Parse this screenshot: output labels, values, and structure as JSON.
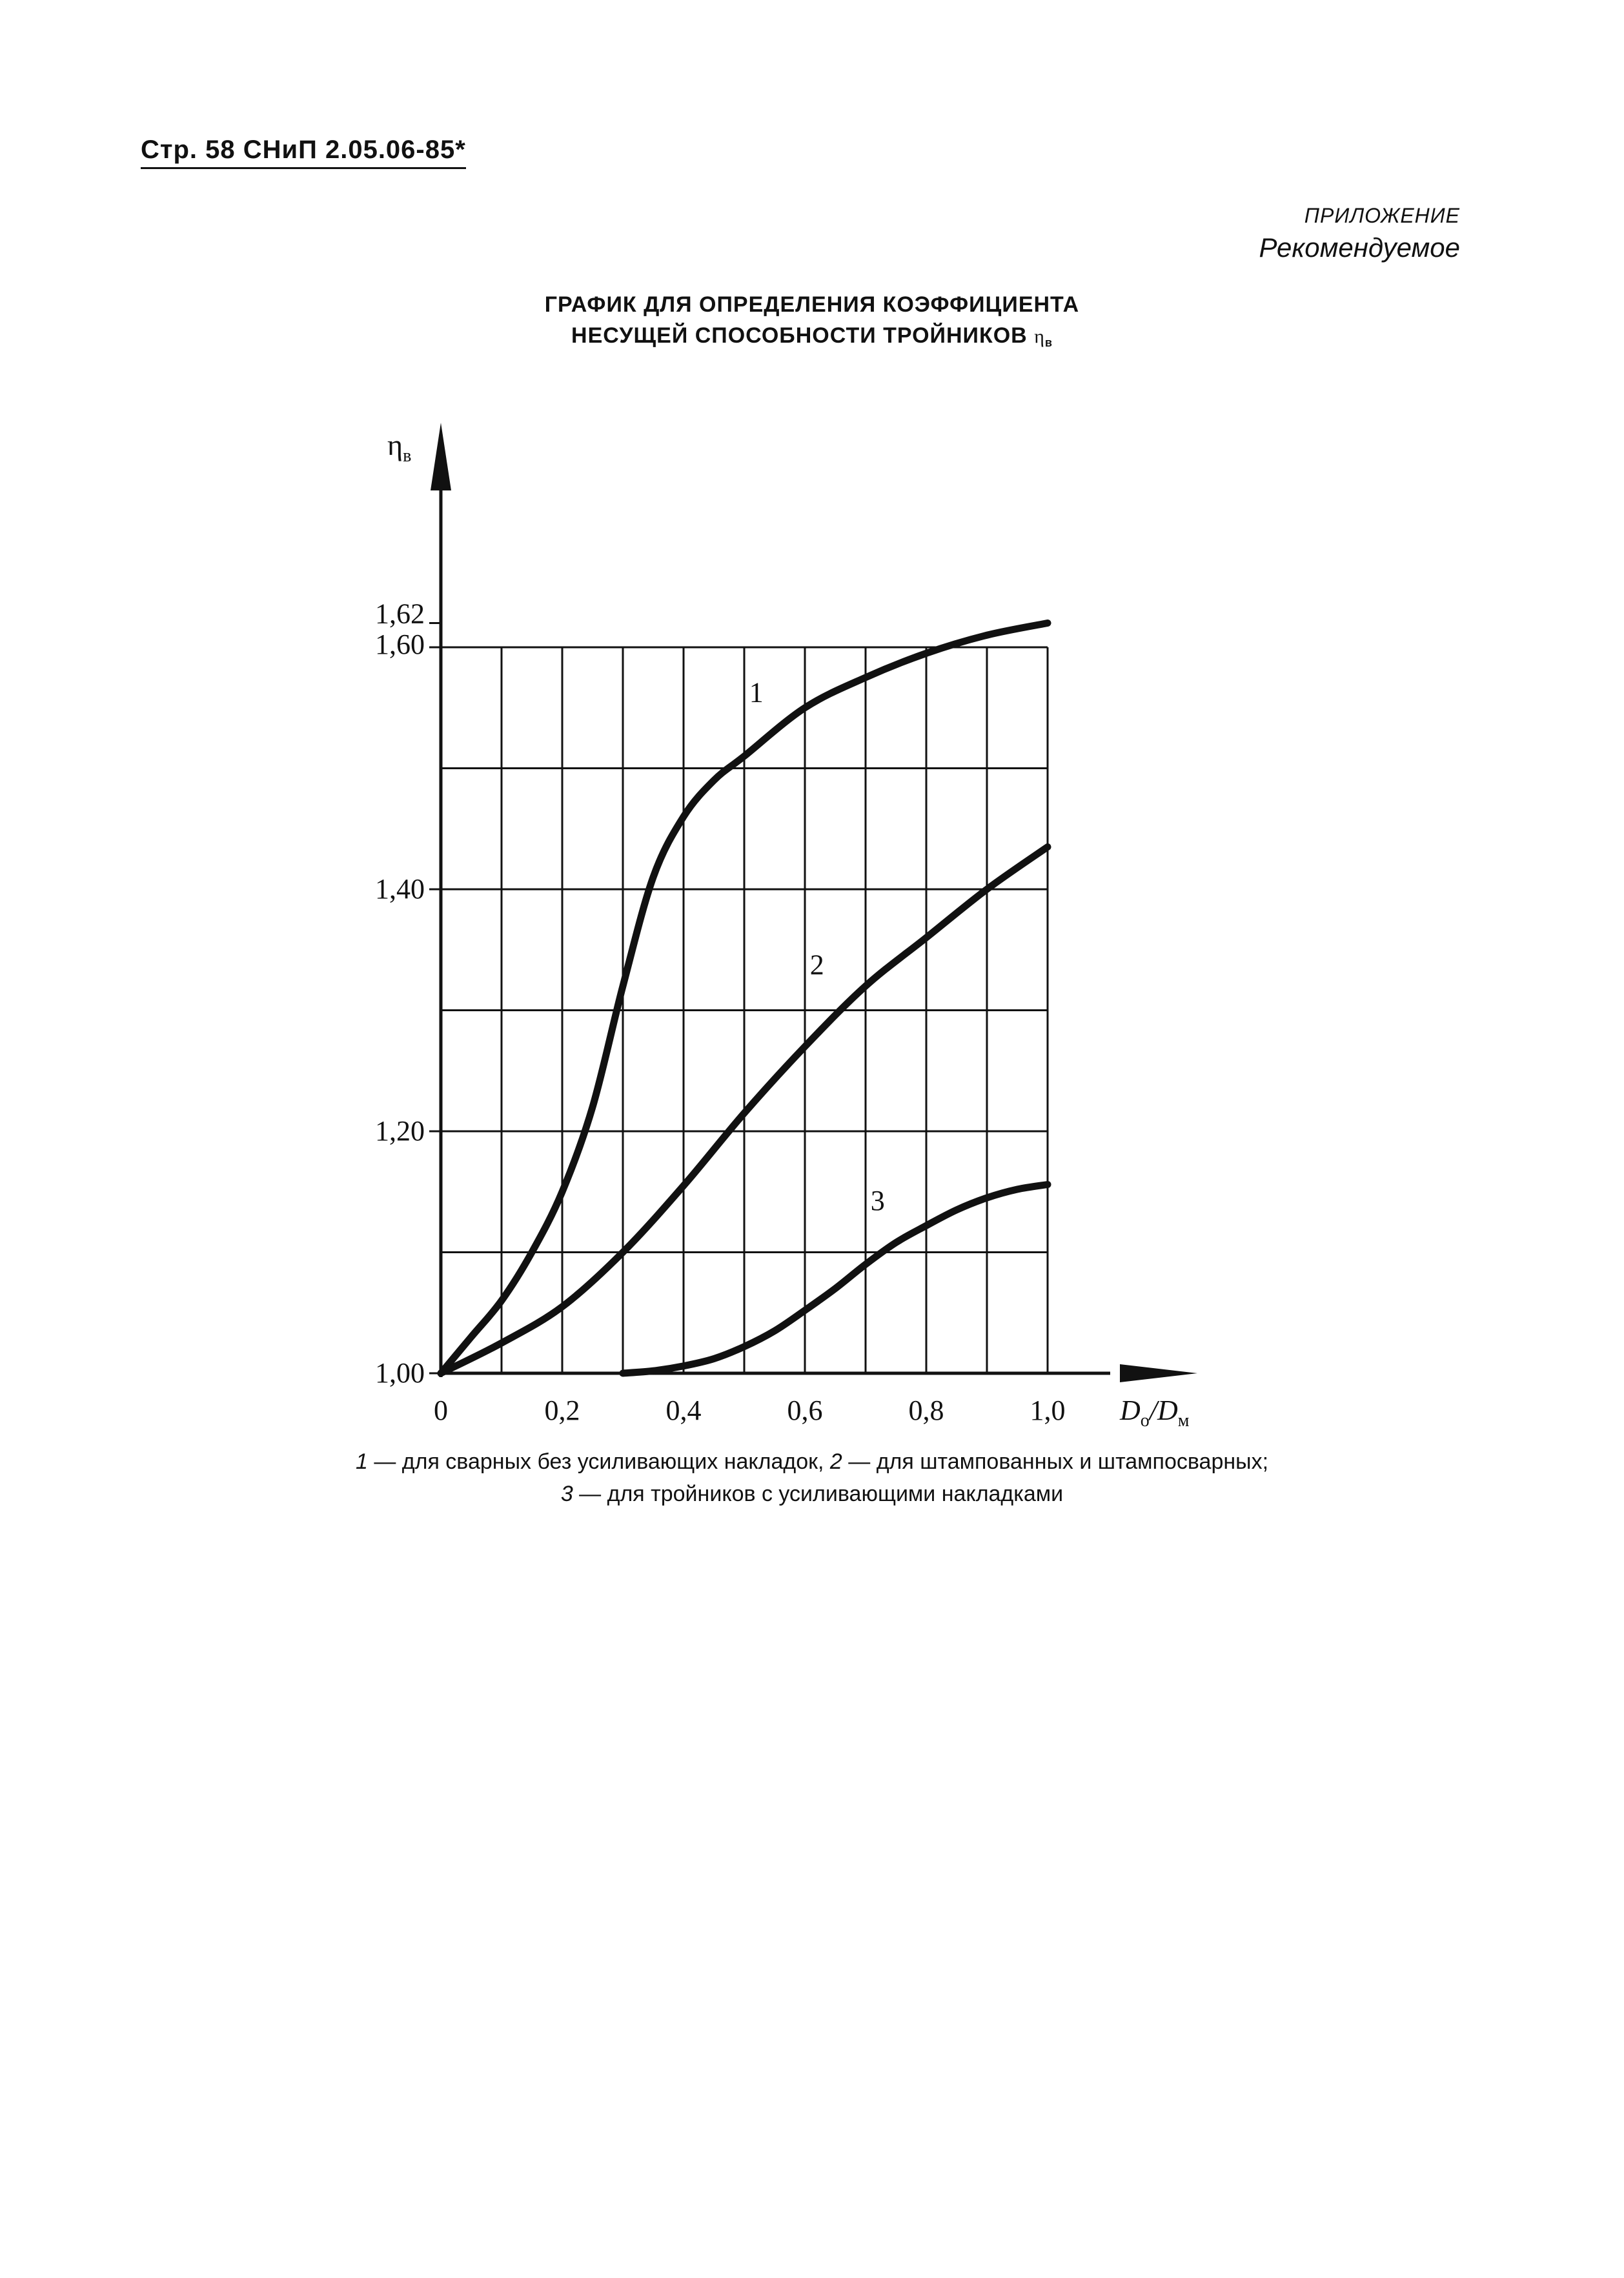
{
  "header": {
    "page_ref": "Стр. 58 СНиП 2.05.06-85*"
  },
  "appendix": {
    "label": "ПРИЛОЖЕНИЕ",
    "type": "Рекомендуемое"
  },
  "title": {
    "line1": "ГРАФИК ДЛЯ ОПРЕДЕЛЕНИЯ КОЭФФИЦИЕНТА",
    "line2": "НЕСУЩЕЙ СПОСОБНОСТИ ТРОЙНИКОВ",
    "symbol": "η",
    "symbol_sub": "в"
  },
  "chart_data": {
    "type": "line",
    "ylabel_symbol": "η",
    "ylabel_sub": "в",
    "xlabel_parts": {
      "a": "D",
      "a_sub": "о",
      "sep": "/",
      "b": "D",
      "b_sub": "м"
    },
    "xlim": [
      0,
      1.0
    ],
    "ylim": [
      1.0,
      1.6
    ],
    "x_ticks": [
      {
        "value": 0,
        "label": "0"
      },
      {
        "value": 0.2,
        "label": "0,2"
      },
      {
        "value": 0.4,
        "label": "0,4"
      },
      {
        "value": 0.6,
        "label": "0,6"
      },
      {
        "value": 0.8,
        "label": "0,8"
      },
      {
        "value": 1.0,
        "label": "1,0"
      }
    ],
    "y_ticks": [
      {
        "value": 1.0,
        "label": "1,00"
      },
      {
        "value": 1.2,
        "label": "1,20"
      },
      {
        "value": 1.4,
        "label": "1,40"
      },
      {
        "value": 1.6,
        "label": "1,60"
      },
      {
        "value": 1.62,
        "label": "1,62"
      }
    ],
    "grid": {
      "x_step": 0.1,
      "y_step": 0.1,
      "enabled": true
    },
    "series": [
      {
        "name": "1",
        "x": [
          0,
          0.05,
          0.1,
          0.15,
          0.2,
          0.25,
          0.3,
          0.35,
          0.4,
          0.45,
          0.5,
          0.6,
          0.7,
          0.8,
          0.9,
          1.0
        ],
        "y": [
          1.0,
          1.03,
          1.06,
          1.1,
          1.15,
          1.22,
          1.32,
          1.41,
          1.46,
          1.49,
          1.51,
          1.55,
          1.575,
          1.595,
          1.61,
          1.62
        ]
      },
      {
        "name": "2",
        "x": [
          0,
          0.1,
          0.2,
          0.3,
          0.4,
          0.5,
          0.6,
          0.7,
          0.8,
          0.9,
          1.0
        ],
        "y": [
          1.0,
          1.025,
          1.055,
          1.1,
          1.155,
          1.215,
          1.27,
          1.32,
          1.36,
          1.4,
          1.435
        ]
      },
      {
        "name": "3",
        "x": [
          0.3,
          0.35,
          0.4,
          0.45,
          0.5,
          0.55,
          0.6,
          0.65,
          0.7,
          0.75,
          0.8,
          0.85,
          0.9,
          0.95,
          1.0
        ],
        "y": [
          1.0,
          1.002,
          1.006,
          1.012,
          1.022,
          1.035,
          1.052,
          1.07,
          1.09,
          1.108,
          1.122,
          1.135,
          1.145,
          1.152,
          1.156
        ]
      }
    ],
    "curve_labels": [
      {
        "series": "1",
        "text": "1",
        "x": 0.52,
        "y": 1.555
      },
      {
        "series": "2",
        "text": "2",
        "x": 0.62,
        "y": 1.33
      },
      {
        "series": "3",
        "text": "3",
        "x": 0.72,
        "y": 1.135
      }
    ]
  },
  "caption": {
    "n1": "1",
    "t1": " — для сварных без усиливающих накладок, ",
    "n2": "2",
    "t2": " — для штампованных и штампосварных;",
    "n3": "3",
    "t3": " — для тройников с усиливающими накладками"
  }
}
